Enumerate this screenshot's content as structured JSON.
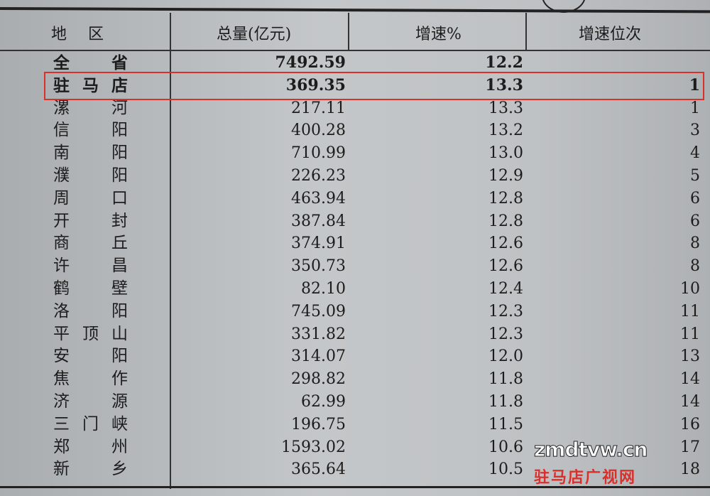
{
  "table": {
    "headers": [
      "地　区",
      "总量(亿元)",
      "增速%",
      "增速位次"
    ],
    "rows": [
      {
        "region": "全省",
        "total": "7492.59",
        "growth": "12.2",
        "rank": ""
      },
      {
        "region": "驻马店",
        "total": "369.35",
        "growth": "13.3",
        "rank": "1"
      },
      {
        "region": "漯河",
        "total": "217.11",
        "growth": "13.3",
        "rank": "1"
      },
      {
        "region": "信阳",
        "total": "400.28",
        "growth": "13.2",
        "rank": "3"
      },
      {
        "region": "南阳",
        "total": "710.99",
        "growth": "13.0",
        "rank": "4"
      },
      {
        "region": "濮阳",
        "total": "226.23",
        "growth": "12.9",
        "rank": "5"
      },
      {
        "region": "周口",
        "total": "463.94",
        "growth": "12.8",
        "rank": "6"
      },
      {
        "region": "开封",
        "total": "387.84",
        "growth": "12.8",
        "rank": "6"
      },
      {
        "region": "商丘",
        "total": "374.91",
        "growth": "12.6",
        "rank": "8"
      },
      {
        "region": "许昌",
        "total": "350.73",
        "growth": "12.6",
        "rank": "8"
      },
      {
        "region": "鹤壁",
        "total": "82.10",
        "growth": "12.4",
        "rank": "10"
      },
      {
        "region": "洛阳",
        "total": "745.09",
        "growth": "12.3",
        "rank": "11"
      },
      {
        "region": "平顶山",
        "total": "331.82",
        "growth": "12.3",
        "rank": "11"
      },
      {
        "region": "安阳",
        "total": "314.07",
        "growth": "12.0",
        "rank": "13"
      },
      {
        "region": "焦作",
        "total": "298.82",
        "growth": "11.8",
        "rank": "14"
      },
      {
        "region": "济源",
        "total": "62.99",
        "growth": "11.8",
        "rank": "14"
      },
      {
        "region": "三门峡",
        "total": "196.75",
        "growth": "11.5",
        "rank": "16"
      },
      {
        "region": "郑州",
        "total": "1593.02",
        "growth": "10.6",
        "rank": "17"
      },
      {
        "region": "新乡",
        "total": "365.64",
        "growth": "10.5",
        "rank": "18"
      }
    ]
  },
  "highlight_color": "#d9302c",
  "watermark": {
    "domain": "zmdtvw.cn",
    "name": "驻马店广视网"
  }
}
